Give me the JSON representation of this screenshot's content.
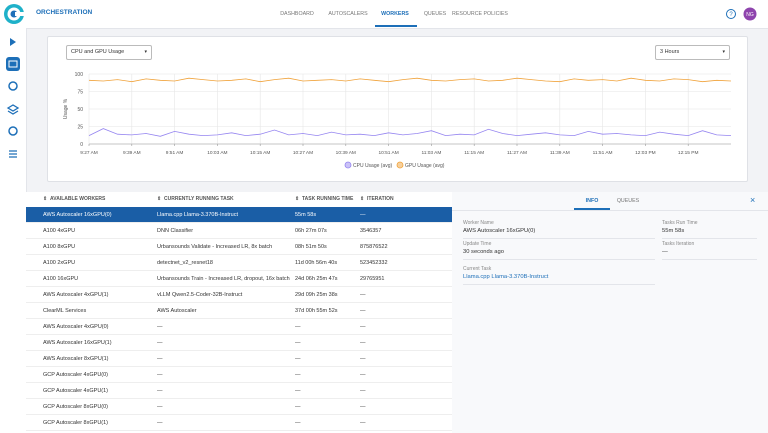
{
  "header": {
    "title": "ORCHESTRATION",
    "avatar": "NG",
    "tabs": [
      {
        "label": "DASHBOARD",
        "active": false
      },
      {
        "label": "AUTOSCALERS",
        "active": false
      },
      {
        "label": "WORKERS",
        "active": true
      },
      {
        "label": "QUEUES",
        "active": false
      },
      {
        "label": "RESOURCE POLICIES",
        "active": false
      }
    ]
  },
  "controls": {
    "metric": "CPU and GPU Usage",
    "range": "3 Hours"
  },
  "chart_data": {
    "type": "line",
    "y_label": "Usage %",
    "grid": true,
    "legend": "bottom",
    "ylim": [
      0,
      100
    ],
    "yticks": [
      0,
      25,
      50,
      75,
      100
    ],
    "categories": [
      "9:27 AM",
      null,
      null,
      "9:39 AM",
      null,
      null,
      "9:51 AM",
      null,
      null,
      "10:03 AM",
      null,
      null,
      "10:15 AM",
      null,
      null,
      "10:27 AM",
      null,
      null,
      "10:39 AM",
      null,
      null,
      "10:51 AM",
      null,
      null,
      "11:03 AM",
      null,
      null,
      "11:15 AM",
      null,
      null,
      "11:27 AM",
      null,
      null,
      "11:39 AM",
      null,
      null,
      "11:51 AM",
      null,
      null,
      "12:03 PM",
      null,
      null,
      "12:15 PM",
      null,
      null,
      null
    ],
    "series": [
      {
        "name": "CPU Usage (avg)",
        "color": "#9585f0",
        "values": [
          12,
          22,
          14,
          13,
          15,
          11,
          18,
          14,
          12,
          13,
          16,
          12,
          14,
          20,
          13,
          15,
          12,
          17,
          13,
          14,
          12,
          16,
          13,
          15,
          19,
          12,
          14,
          13,
          21,
          15,
          12,
          14,
          16,
          13,
          12,
          18,
          14,
          15,
          13,
          12,
          17,
          14,
          12,
          19,
          13,
          12
        ]
      },
      {
        "name": "GPU Usage (avg)",
        "color": "#f0a23a",
        "values": [
          91,
          90,
          92,
          89,
          93,
          91,
          90,
          94,
          92,
          90,
          91,
          93,
          89,
          92,
          94,
          90,
          91,
          92,
          90,
          93,
          91,
          89,
          92,
          94,
          91,
          90,
          92,
          93,
          90,
          91,
          94,
          92,
          90,
          89,
          93,
          91,
          92,
          90,
          94,
          91,
          90,
          93,
          92,
          89,
          91,
          90
        ]
      }
    ]
  },
  "table": {
    "columns": [
      "AVAILABLE WORKERS",
      "CURRENTLY RUNNING TASK",
      "TASK RUNNING TIME",
      "ITERATION"
    ],
    "rows": [
      {
        "selected": true,
        "cells": [
          "AWS Autoscaler 16xGPU(0)",
          "Llama.cpp Llama-3.370B-Instruct",
          "55m 58s",
          "—"
        ]
      },
      {
        "selected": false,
        "cells": [
          "A100 4xGPU",
          "DNN Classifier",
          "06h 27m 07s",
          "3546357"
        ]
      },
      {
        "selected": false,
        "cells": [
          "A100 8xGPU",
          "Urbansounds Validate - Increased LR, 8x batch",
          "08h 51m 50s",
          "875876522"
        ]
      },
      {
        "selected": false,
        "cells": [
          "A100 2xGPU",
          "detectnet_v2_resnet18",
          "11d 00h 56m 40s",
          "523452332"
        ]
      },
      {
        "selected": false,
        "cells": [
          "A100 16xGPU",
          "Urbansounds Train - Increased LR, dropout, 16x batch",
          "24d 06h 25m 47s",
          "29765951"
        ]
      },
      {
        "selected": false,
        "cells": [
          "AWS Autoscaler 4xGPU(1)",
          "vLLM Qwen2.5-Coder-32B-Instruct",
          "29d 09h 25m 38s",
          "—"
        ]
      },
      {
        "selected": false,
        "cells": [
          "ClearML Services",
          "AWS Autoscaler",
          "37d 00h 55m 52s",
          "—"
        ]
      },
      {
        "selected": false,
        "cells": [
          "AWS Autoscaler 4xGPU(0)",
          "—",
          "—",
          "—"
        ]
      },
      {
        "selected": false,
        "cells": [
          "AWS Autoscaler 16xGPU(1)",
          "—",
          "—",
          "—"
        ]
      },
      {
        "selected": false,
        "cells": [
          "AWS Autoscaler 8xGPU(1)",
          "—",
          "—",
          "—"
        ]
      },
      {
        "selected": false,
        "cells": [
          "GCP Autoscaler 4xGPU(0)",
          "—",
          "—",
          "—"
        ]
      },
      {
        "selected": false,
        "cells": [
          "GCP Autoscaler 4xGPU(1)",
          "—",
          "—",
          "—"
        ]
      },
      {
        "selected": false,
        "cells": [
          "GCP Autoscaler 8xGPU(0)",
          "—",
          "—",
          "—"
        ]
      },
      {
        "selected": false,
        "cells": [
          "GCP Autoscaler 8xGPU(1)",
          "—",
          "—",
          "—"
        ]
      }
    ]
  },
  "details": {
    "tabs": [
      {
        "label": "INFO",
        "active": true
      },
      {
        "label": "QUEUES",
        "active": false
      }
    ],
    "fields": [
      {
        "label": "Worker Name",
        "value": "AWS Autoscaler 16xGPU(0)"
      },
      {
        "label": "Tasks Run Time",
        "value": "55m 58s"
      },
      {
        "label": "Update Time",
        "value": "30 seconds ago"
      },
      {
        "label": "Tasks Iteration",
        "value": "—"
      },
      {
        "label": "Current Task",
        "value": "Llama.cpp Llama-3.370B-Instruct"
      }
    ]
  }
}
